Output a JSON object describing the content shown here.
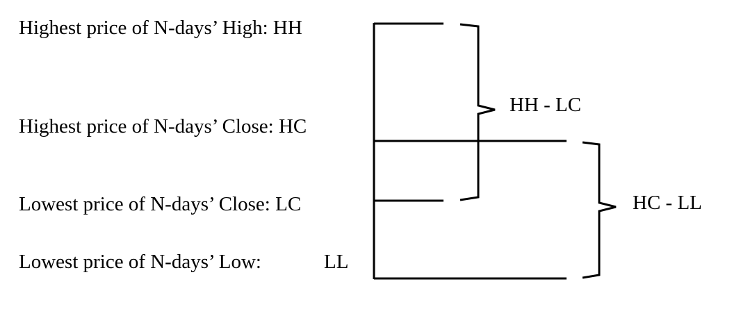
{
  "labels": {
    "hh": "Highest price of N-days’ High: HH",
    "hc": "Highest price of N-days’ Close: HC",
    "lc": "Lowest price of N-days’ Close: LC",
    "ll_prefix": "Lowest price of N-days’ Low:",
    "ll_code": "LL"
  },
  "ranges": {
    "hh_lc": "HH - LC",
    "hc_ll": "HC - LL"
  },
  "colors": {
    "line": "#000000",
    "text": "#000000",
    "background": "#ffffff"
  }
}
